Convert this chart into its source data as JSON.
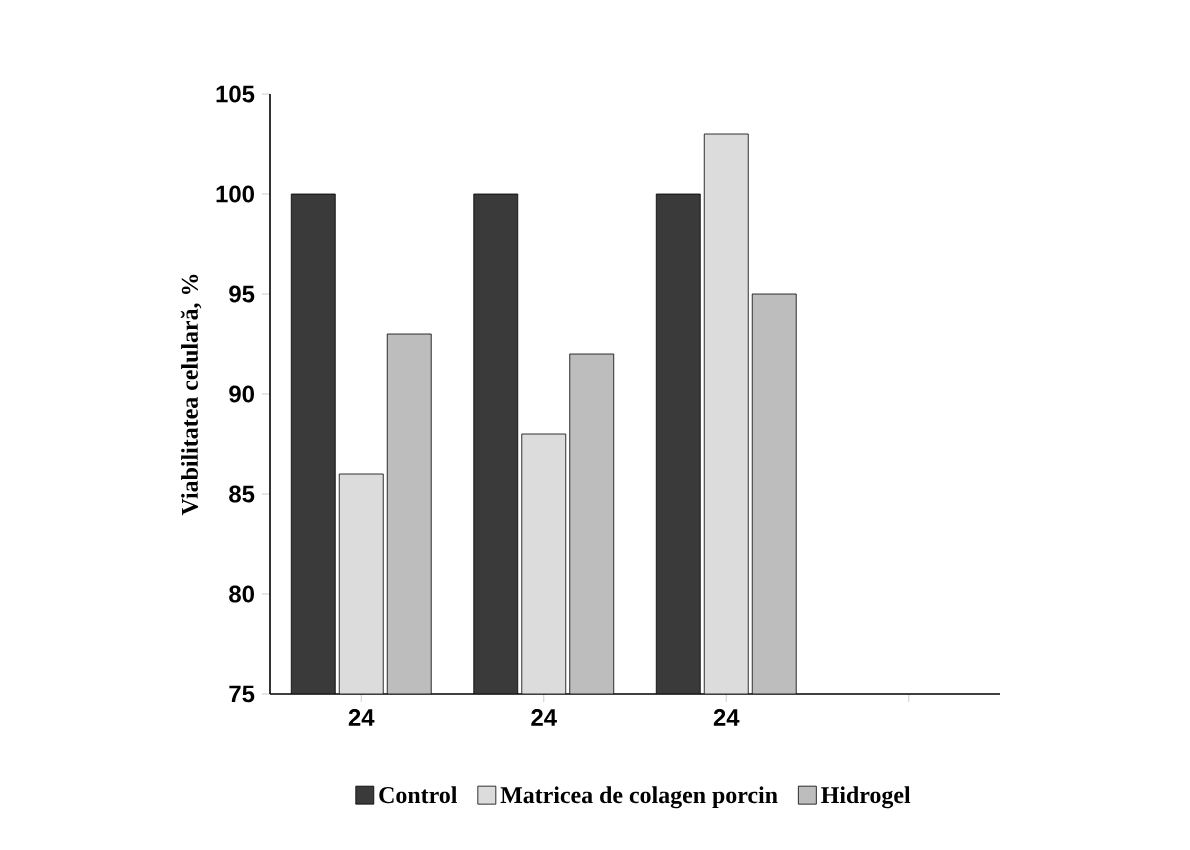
{
  "chart_data": {
    "type": "bar",
    "ylabel": "Viabilitatea celulară, %",
    "categories": [
      "24",
      "24",
      "24",
      null
    ],
    "series": [
      {
        "name": "Control",
        "color": "#3a3a3a",
        "values": [
          100,
          100,
          100,
          null
        ]
      },
      {
        "name": "Matricea de colagen porcin",
        "color": "#dcdcdc",
        "values": [
          86,
          88,
          103,
          null
        ]
      },
      {
        "name": "Hidrogel",
        "color": "#bdbdbd",
        "values": [
          93,
          92,
          95,
          null
        ]
      }
    ],
    "ylim": [
      75,
      105
    ],
    "yticks": [
      75,
      80,
      85,
      90,
      95,
      100,
      105
    ],
    "legend": "bottom"
  }
}
